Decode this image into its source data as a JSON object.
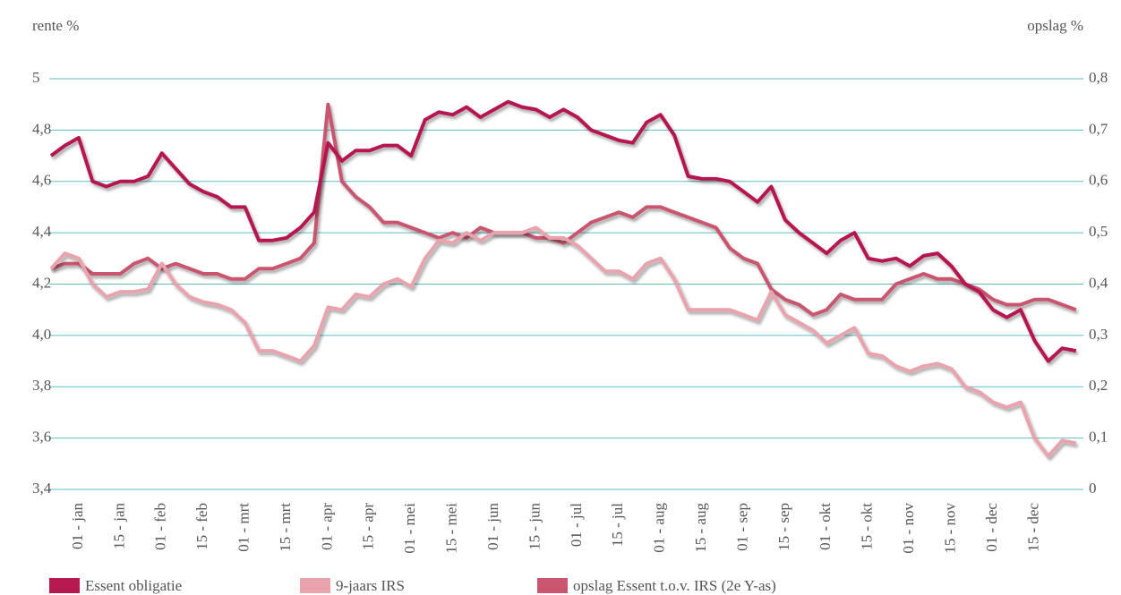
{
  "chart_data": {
    "type": "line",
    "y_label": "rente %",
    "y2_label": "opslag %",
    "categories": [
      null,
      null,
      "01 - jan",
      null,
      null,
      "15 - jan",
      null,
      null,
      "01 - feb",
      null,
      null,
      "15 - feb",
      null,
      null,
      "01 - mrt",
      null,
      null,
      "15 - mrt",
      null,
      null,
      "01 - apr",
      null,
      null,
      "15 - apr",
      null,
      null,
      "01 - mei",
      null,
      null,
      "15 - mei",
      null,
      null,
      "01 - jun",
      null,
      null,
      "15 - jun",
      null,
      null,
      "01 - jul",
      null,
      null,
      "15 - jul",
      null,
      null,
      "01 - aug",
      null,
      null,
      "15 - aug",
      null,
      null,
      "01 - sep",
      null,
      null,
      "15 - sep",
      null,
      null,
      "01 - okt",
      null,
      null,
      "15 - okt",
      null,
      null,
      "01 - nov",
      null,
      null,
      "15 - nov",
      null,
      null,
      "01 - dec",
      null,
      null,
      "15 - dec",
      null,
      null,
      null
    ],
    "series": [
      {
        "name": "Essent obligatie",
        "color": "#b5194f",
        "axis": "y",
        "values": [
          4.7,
          4.74,
          4.77,
          4.6,
          4.58,
          4.6,
          4.6,
          4.62,
          4.71,
          4.65,
          4.59,
          4.56,
          4.54,
          4.5,
          4.5,
          4.37,
          4.37,
          4.38,
          4.42,
          4.48,
          4.75,
          4.68,
          4.72,
          4.72,
          4.74,
          4.74,
          4.7,
          4.84,
          4.87,
          4.86,
          4.89,
          4.85,
          4.88,
          4.91,
          4.89,
          4.88,
          4.85,
          4.88,
          4.85,
          4.8,
          4.78,
          4.76,
          4.75,
          4.83,
          4.86,
          4.78,
          4.62,
          4.61,
          4.61,
          4.6,
          4.56,
          4.52,
          4.58,
          4.45,
          4.4,
          4.36,
          4.32,
          4.37,
          4.4,
          4.3,
          4.29,
          4.3,
          4.27,
          4.31,
          4.32,
          4.27,
          4.2,
          4.17,
          4.1,
          4.07,
          4.1,
          3.98,
          3.9,
          3.95,
          3.94
        ]
      },
      {
        "name": "9-jaars IRS",
        "color": "#e8a3ad",
        "axis": "y",
        "values": [
          4.26,
          4.32,
          4.3,
          4.2,
          4.15,
          4.17,
          4.17,
          4.18,
          4.28,
          4.2,
          4.15,
          4.13,
          4.12,
          4.1,
          4.05,
          3.94,
          3.94,
          3.92,
          3.9,
          3.96,
          4.11,
          4.1,
          4.16,
          4.15,
          4.2,
          4.22,
          4.19,
          4.3,
          4.37,
          4.36,
          4.4,
          4.37,
          4.4,
          4.4,
          4.4,
          4.42,
          4.38,
          4.38,
          4.35,
          4.3,
          4.25,
          4.25,
          4.22,
          4.28,
          4.3,
          4.22,
          4.1,
          4.1,
          4.1,
          4.1,
          4.08,
          4.06,
          4.17,
          4.08,
          4.05,
          4.02,
          3.97,
          4.0,
          4.03,
          3.93,
          3.92,
          3.88,
          3.86,
          3.88,
          3.89,
          3.87,
          3.8,
          3.78,
          3.74,
          3.72,
          3.74,
          3.6,
          3.53,
          3.59,
          3.58
        ]
      },
      {
        "name": "opslag Essent t.o.v. IRS (2e Y-as)",
        "color": "#c9566e",
        "axis": "y2",
        "values": [
          0.43,
          0.44,
          0.44,
          0.42,
          0.42,
          0.42,
          0.44,
          0.45,
          0.43,
          0.44,
          0.43,
          0.42,
          0.42,
          0.41,
          0.41,
          0.43,
          0.43,
          0.44,
          0.45,
          0.48,
          0.75,
          0.6,
          0.57,
          0.55,
          0.52,
          0.52,
          0.51,
          0.5,
          0.49,
          0.5,
          0.49,
          0.51,
          0.5,
          0.5,
          0.5,
          0.49,
          0.49,
          0.48,
          0.5,
          0.52,
          0.53,
          0.54,
          0.53,
          0.55,
          0.55,
          0.54,
          0.53,
          0.52,
          0.51,
          0.47,
          0.45,
          0.44,
          0.39,
          0.37,
          0.36,
          0.34,
          0.35,
          0.38,
          0.37,
          0.37,
          0.37,
          0.4,
          0.41,
          0.42,
          0.41,
          0.41,
          0.4,
          0.39,
          0.37,
          0.36,
          0.36,
          0.37,
          0.37,
          0.36,
          0.35
        ]
      }
    ],
    "ylim": [
      3.4,
      5
    ],
    "yticks": [
      {
        "value": 3.4,
        "label": "3,4"
      },
      {
        "value": 3.6,
        "label": "3,6"
      },
      {
        "value": 3.8,
        "label": "3,8"
      },
      {
        "value": 4.0,
        "label": "4,0"
      },
      {
        "value": 4.2,
        "label": "4,2"
      },
      {
        "value": 4.4,
        "label": "4,4"
      },
      {
        "value": 4.6,
        "label": "4,6"
      },
      {
        "value": 4.8,
        "label": "4,8"
      },
      5
    ],
    "y2lim": [
      0,
      0.8
    ],
    "y2ticks": [
      0,
      {
        "value": 0.1,
        "label": "0,1"
      },
      {
        "value": 0.2,
        "label": "0,2"
      },
      {
        "value": 0.3,
        "label": "0,3"
      },
      {
        "value": 0.4,
        "label": "0,4"
      },
      {
        "value": 0.5,
        "label": "0,5"
      },
      {
        "value": 0.6,
        "label": "0,6"
      },
      {
        "value": 0.7,
        "label": "0,7"
      },
      {
        "value": 0.8,
        "label": "0,8"
      }
    ],
    "grid": true,
    "legend": "bottom"
  }
}
